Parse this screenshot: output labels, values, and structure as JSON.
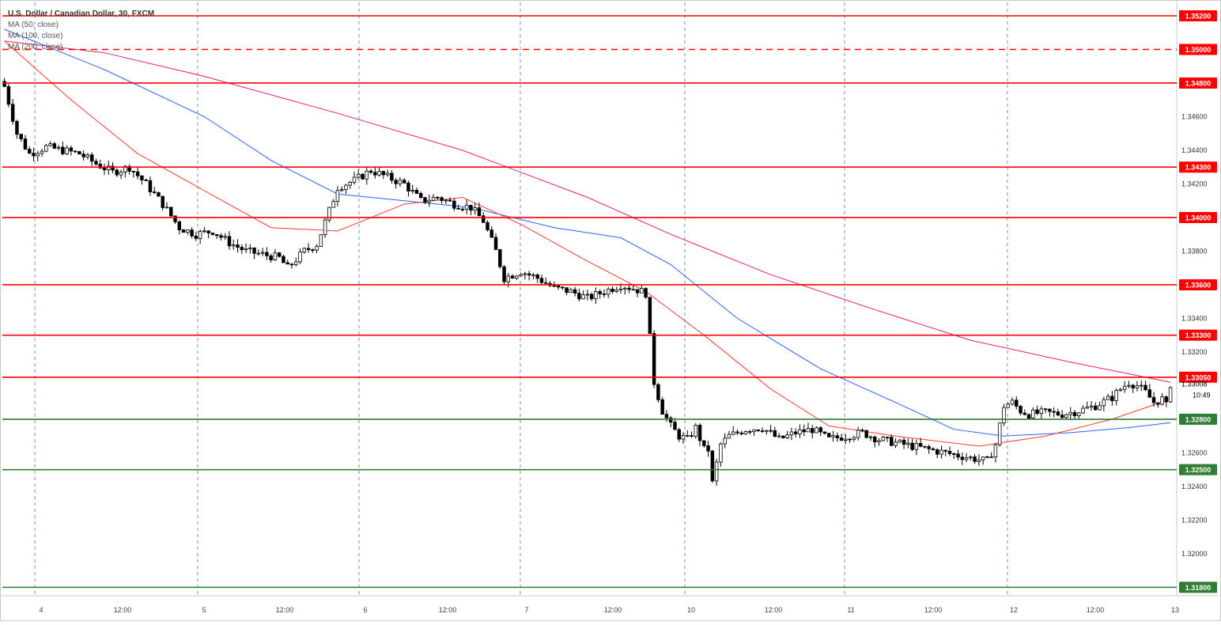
{
  "legend": {
    "title": "U.S. Dollar / Canadian Dollar, 30, FXCM",
    "ma1": "MA (50, close)",
    "ma2": "MA (100, close)",
    "ma3": "MA (200, close)"
  },
  "colors": {
    "candle_up": "#ffffff",
    "candle_down": "#000000",
    "resistance": "#ff0000",
    "support": "#2e7d32",
    "ma50": "#ff3b30",
    "ma100": "#2962ff",
    "ma200": "#e91e63",
    "grid": "#4a7ec0"
  },
  "chart_data": {
    "type": "candlestick",
    "ylim": [
      1.3175,
      1.3528
    ],
    "y_ticks": [
      "1.34600",
      "1.34400",
      "1.34200",
      "1.33800",
      "1.33400",
      "1.33200",
      "1.32600",
      "1.32400",
      "1.32200",
      "1.32000"
    ],
    "x_ticks": [
      "4",
      "12:00",
      "5",
      "12:00",
      "6",
      "12:00",
      "7",
      "12:00",
      "10",
      "12:00",
      "11",
      "12:00",
      "12",
      "12:00",
      "13"
    ],
    "current_price": "1.33008",
    "countdown": "10:49",
    "levels": [
      {
        "label": "1.35200",
        "value": 1.352,
        "style": "solid",
        "kind": "resistance"
      },
      {
        "label": "1.35000",
        "value": 1.35,
        "style": "dashed",
        "kind": "resistance"
      },
      {
        "label": "1.34800",
        "value": 1.348,
        "style": "solid",
        "kind": "resistance"
      },
      {
        "label": "1.34300",
        "value": 1.343,
        "style": "solid",
        "kind": "resistance"
      },
      {
        "label": "1.34000",
        "value": 1.34,
        "style": "solid",
        "kind": "resistance"
      },
      {
        "label": "1.33600",
        "value": 1.336,
        "style": "solid",
        "kind": "resistance"
      },
      {
        "label": "1.33300",
        "value": 1.333,
        "style": "solid",
        "kind": "resistance"
      },
      {
        "label": "1.33050",
        "value": 1.3305,
        "style": "solid",
        "kind": "resistance"
      },
      {
        "label": "1.32800",
        "value": 1.328,
        "style": "solid",
        "kind": "support"
      },
      {
        "label": "1.32500",
        "value": 1.325,
        "style": "solid",
        "kind": "support"
      },
      {
        "label": "1.31800",
        "value": 1.318,
        "style": "solid",
        "kind": "support"
      }
    ],
    "close_path": [
      [
        0,
        1.3478
      ],
      [
        3,
        1.345
      ],
      [
        6,
        1.3438
      ],
      [
        10,
        1.3442
      ],
      [
        14,
        1.344
      ],
      [
        18,
        1.3438
      ],
      [
        22,
        1.3432
      ],
      [
        26,
        1.3427
      ],
      [
        30,
        1.343
      ],
      [
        34,
        1.342
      ],
      [
        38,
        1.3408
      ],
      [
        42,
        1.3394
      ],
      [
        46,
        1.339
      ],
      [
        50,
        1.3392
      ],
      [
        54,
        1.3385
      ],
      [
        58,
        1.338
      ],
      [
        62,
        1.3378
      ],
      [
        66,
        1.3376
      ],
      [
        68,
        1.337
      ],
      [
        72,
        1.338
      ],
      [
        75,
        1.3384
      ],
      [
        78,
        1.3404
      ],
      [
        80,
        1.3418
      ],
      [
        84,
        1.3422
      ],
      [
        88,
        1.3428
      ],
      [
        92,
        1.3424
      ],
      [
        96,
        1.342
      ],
      [
        100,
        1.341
      ],
      [
        104,
        1.3412
      ],
      [
        108,
        1.3408
      ],
      [
        112,
        1.3406
      ],
      [
        115,
        1.3398
      ],
      [
        118,
        1.338
      ],
      [
        120,
        1.3364
      ],
      [
        124,
        1.3368
      ],
      [
        128,
        1.3364
      ],
      [
        132,
        1.3358
      ],
      [
        136,
        1.3356
      ],
      [
        140,
        1.3352
      ],
      [
        144,
        1.3356
      ],
      [
        148,
        1.336
      ],
      [
        152,
        1.3357
      ],
      [
        154,
        1.3355
      ],
      [
        156,
        1.3302
      ],
      [
        158,
        1.3285
      ],
      [
        160,
        1.3276
      ],
      [
        162,
        1.327
      ],
      [
        164,
        1.3268
      ],
      [
        166,
        1.3275
      ],
      [
        168,
        1.3262
      ],
      [
        169,
        1.3262
      ],
      [
        170,
        1.3242
      ],
      [
        172,
        1.3265
      ],
      [
        174,
        1.327
      ],
      [
        178,
        1.3274
      ],
      [
        182,
        1.3275
      ],
      [
        186,
        1.3268
      ],
      [
        190,
        1.3272
      ],
      [
        194,
        1.3274
      ],
      [
        198,
        1.3268
      ],
      [
        202,
        1.327
      ],
      [
        206,
        1.3272
      ],
      [
        210,
        1.3268
      ],
      [
        214,
        1.3266
      ],
      [
        218,
        1.3264
      ],
      [
        222,
        1.3262
      ],
      [
        226,
        1.326
      ],
      [
        230,
        1.3258
      ],
      [
        234,
        1.3256
      ],
      [
        236,
        1.3255
      ],
      [
        238,
        1.3265
      ],
      [
        240,
        1.3288
      ],
      [
        242,
        1.329
      ],
      [
        244,
        1.3285
      ],
      [
        246,
        1.3283
      ],
      [
        250,
        1.3284
      ],
      [
        254,
        1.3283
      ],
      [
        258,
        1.3285
      ],
      [
        262,
        1.3288
      ],
      [
        266,
        1.3293
      ],
      [
        268,
        1.3298
      ],
      [
        270,
        1.3302
      ],
      [
        272,
        1.33
      ],
      [
        274,
        1.3296
      ],
      [
        276,
        1.329
      ],
      [
        278,
        1.3292
      ],
      [
        279,
        1.3288
      ],
      [
        280,
        1.3301
      ]
    ],
    "ma50": [
      [
        0,
        1.3505
      ],
      [
        16,
        1.347
      ],
      [
        32,
        1.3438
      ],
      [
        48,
        1.3416
      ],
      [
        64,
        1.3394
      ],
      [
        80,
        1.3392
      ],
      [
        96,
        1.3408
      ],
      [
        110,
        1.3412
      ],
      [
        124,
        1.3396
      ],
      [
        140,
        1.3374
      ],
      [
        154,
        1.3356
      ],
      [
        168,
        1.333
      ],
      [
        184,
        1.3298
      ],
      [
        198,
        1.3276
      ],
      [
        214,
        1.327
      ],
      [
        234,
        1.3264
      ],
      [
        250,
        1.327
      ],
      [
        266,
        1.328
      ],
      [
        280,
        1.3292
      ]
    ],
    "ma100": [
      [
        0,
        1.3512
      ],
      [
        24,
        1.3488
      ],
      [
        48,
        1.346
      ],
      [
        64,
        1.3434
      ],
      [
        80,
        1.3414
      ],
      [
        96,
        1.341
      ],
      [
        112,
        1.3406
      ],
      [
        132,
        1.3394
      ],
      [
        148,
        1.3388
      ],
      [
        160,
        1.3372
      ],
      [
        176,
        1.334
      ],
      [
        196,
        1.331
      ],
      [
        214,
        1.329
      ],
      [
        228,
        1.3274
      ],
      [
        240,
        1.327
      ],
      [
        256,
        1.3272
      ],
      [
        270,
        1.3275
      ],
      [
        280,
        1.3278
      ]
    ],
    "ma200": [
      [
        0,
        1.3505
      ],
      [
        24,
        1.3498
      ],
      [
        48,
        1.3484
      ],
      [
        80,
        1.3462
      ],
      [
        110,
        1.344
      ],
      [
        140,
        1.3412
      ],
      [
        160,
        1.339
      ],
      [
        184,
        1.3366
      ],
      [
        208,
        1.3346
      ],
      [
        232,
        1.3327
      ],
      [
        256,
        1.3314
      ],
      [
        270,
        1.3307
      ],
      [
        280,
        1.3302
      ]
    ]
  }
}
